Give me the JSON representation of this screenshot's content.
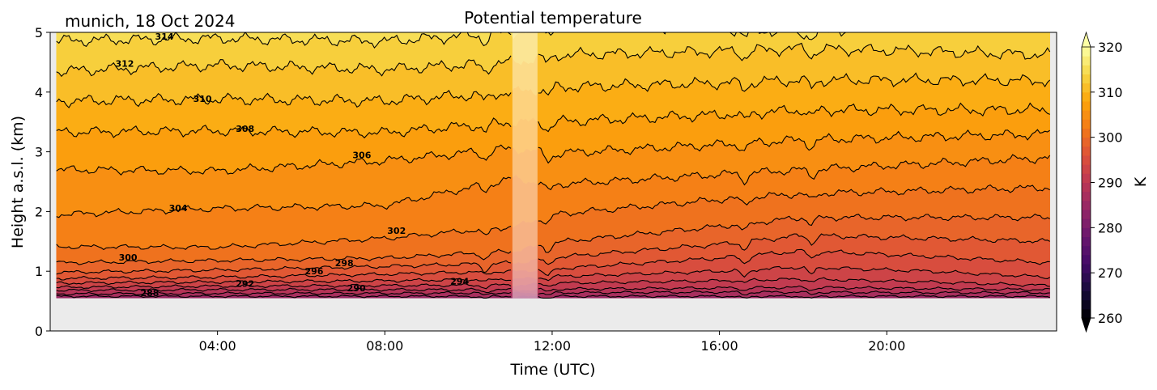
{
  "chart_data": {
    "type": "heatmap",
    "title": "Potential temperature",
    "location_label": "munich, 18 Oct 2024",
    "xlabel": "Time (UTC)",
    "ylabel": "Height a.s.l. (km)",
    "xlim": [
      0,
      24.06
    ],
    "ylim": [
      0,
      5
    ],
    "x_ticks": [
      {
        "value": 4,
        "label": "04:00"
      },
      {
        "value": 8,
        "label": "08:00"
      },
      {
        "value": 12,
        "label": "12:00"
      },
      {
        "value": 16,
        "label": "16:00"
      },
      {
        "value": 20,
        "label": "20:00"
      }
    ],
    "y_ticks": [
      {
        "value": 0,
        "label": "0"
      },
      {
        "value": 1,
        "label": "1"
      },
      {
        "value": 2,
        "label": "2"
      },
      {
        "value": 3,
        "label": "3"
      },
      {
        "value": 4,
        "label": "4"
      },
      {
        "value": 5,
        "label": "5"
      }
    ],
    "data_time_range": [
      0.15,
      23.9
    ],
    "data_bottom_km": 0.55,
    "masked_interval": [
      11.05,
      11.65
    ],
    "contour_times": [
      0.15,
      4,
      8,
      11.1,
      12,
      16,
      18,
      21,
      23.9
    ],
    "contours": [
      {
        "level": 286,
        "heights": [
          0.58,
          0.58,
          0.58,
          0.58,
          0.58,
          0.58,
          0.58,
          0.58,
          0.58
        ]
      },
      {
        "level": 288,
        "heights": [
          0.62,
          0.63,
          0.63,
          0.64,
          0.64,
          0.65,
          0.65,
          0.64,
          0.64
        ]
      },
      {
        "level": 290,
        "heights": [
          0.68,
          0.69,
          0.69,
          0.69,
          0.7,
          0.72,
          0.73,
          0.71,
          0.69
        ]
      },
      {
        "level": 292,
        "heights": [
          0.73,
          0.75,
          0.76,
          0.77,
          0.8,
          0.84,
          0.87,
          0.82,
          0.76
        ]
      },
      {
        "level": 294,
        "heights": [
          0.8,
          0.82,
          0.84,
          0.87,
          0.91,
          1.0,
          1.07,
          1.0,
          0.9
        ]
      },
      {
        "level": 296,
        "heights": [
          0.88,
          0.9,
          0.95,
          1.0,
          1.04,
          1.22,
          1.34,
          1.25,
          1.14
        ]
      },
      {
        "level": 298,
        "heights": [
          0.98,
          1.02,
          1.08,
          1.14,
          1.23,
          1.45,
          1.6,
          1.55,
          1.5
        ]
      },
      {
        "level": 300,
        "heights": [
          1.14,
          1.18,
          1.22,
          1.34,
          1.48,
          1.75,
          1.9,
          1.9,
          1.9
        ]
      },
      {
        "level": 302,
        "heights": [
          1.41,
          1.4,
          1.55,
          1.75,
          1.95,
          2.2,
          2.3,
          2.35,
          2.4
        ]
      },
      {
        "level": 304,
        "heights": [
          1.95,
          2.05,
          2.1,
          2.56,
          2.45,
          2.62,
          2.7,
          2.8,
          2.9
        ]
      },
      {
        "level": 306,
        "heights": [
          2.7,
          2.68,
          2.85,
          3.06,
          2.97,
          3.12,
          3.2,
          3.25,
          3.3
        ]
      },
      {
        "level": 308,
        "heights": [
          3.33,
          3.35,
          3.32,
          3.5,
          3.5,
          3.62,
          3.7,
          3.7,
          3.7
        ]
      },
      {
        "level": 310,
        "heights": [
          3.85,
          3.88,
          3.85,
          4.0,
          4.08,
          4.15,
          4.2,
          4.2,
          4.19
        ]
      },
      {
        "level": 312,
        "heights": [
          4.35,
          4.45,
          4.38,
          4.5,
          4.62,
          4.68,
          4.73,
          4.68,
          4.62
        ]
      },
      {
        "level": 314,
        "heights": [
          4.86,
          4.9,
          4.85,
          5.0,
          5.12,
          5.06,
          5.0,
          5.15,
          5.15
        ]
      }
    ],
    "contour_labels": [
      {
        "text": "314",
        "t": 2.73,
        "z": 4.93
      },
      {
        "text": "312",
        "t": 1.78,
        "z": 4.48
      },
      {
        "text": "310",
        "t": 3.64,
        "z": 3.89
      },
      {
        "text": "308",
        "t": 4.66,
        "z": 3.39
      },
      {
        "text": "306",
        "t": 7.45,
        "z": 2.95
      },
      {
        "text": "304",
        "t": 3.06,
        "z": 2.06
      },
      {
        "text": "302",
        "t": 8.28,
        "z": 1.68
      },
      {
        "text": "300",
        "t": 1.86,
        "z": 1.23
      },
      {
        "text": "298",
        "t": 7.03,
        "z": 1.14
      },
      {
        "text": "296",
        "t": 6.31,
        "z": 1.0
      },
      {
        "text": "294",
        "t": 9.79,
        "z": 0.83
      },
      {
        "text": "292",
        "t": 4.66,
        "z": 0.79
      },
      {
        "text": "290",
        "t": 7.32,
        "z": 0.72
      },
      {
        "text": "288",
        "t": 2.38,
        "z": 0.64
      }
    ],
    "colorbar": {
      "label": "K",
      "range": [
        260,
        320
      ],
      "step": 2,
      "extend": "both",
      "ticks": [
        "260",
        "270",
        "280",
        "290",
        "300",
        "310",
        "320"
      ],
      "colormap_stops": [
        "#000004",
        "#160b39",
        "#420a68",
        "#6a176e",
        "#932667",
        "#bc3754",
        "#dd513a",
        "#f37819",
        "#fca50a",
        "#f6d746",
        "#fcffa4"
      ]
    },
    "colors": {
      "axes_background": "#ebebeb",
      "contour_line": "#000000"
    }
  }
}
